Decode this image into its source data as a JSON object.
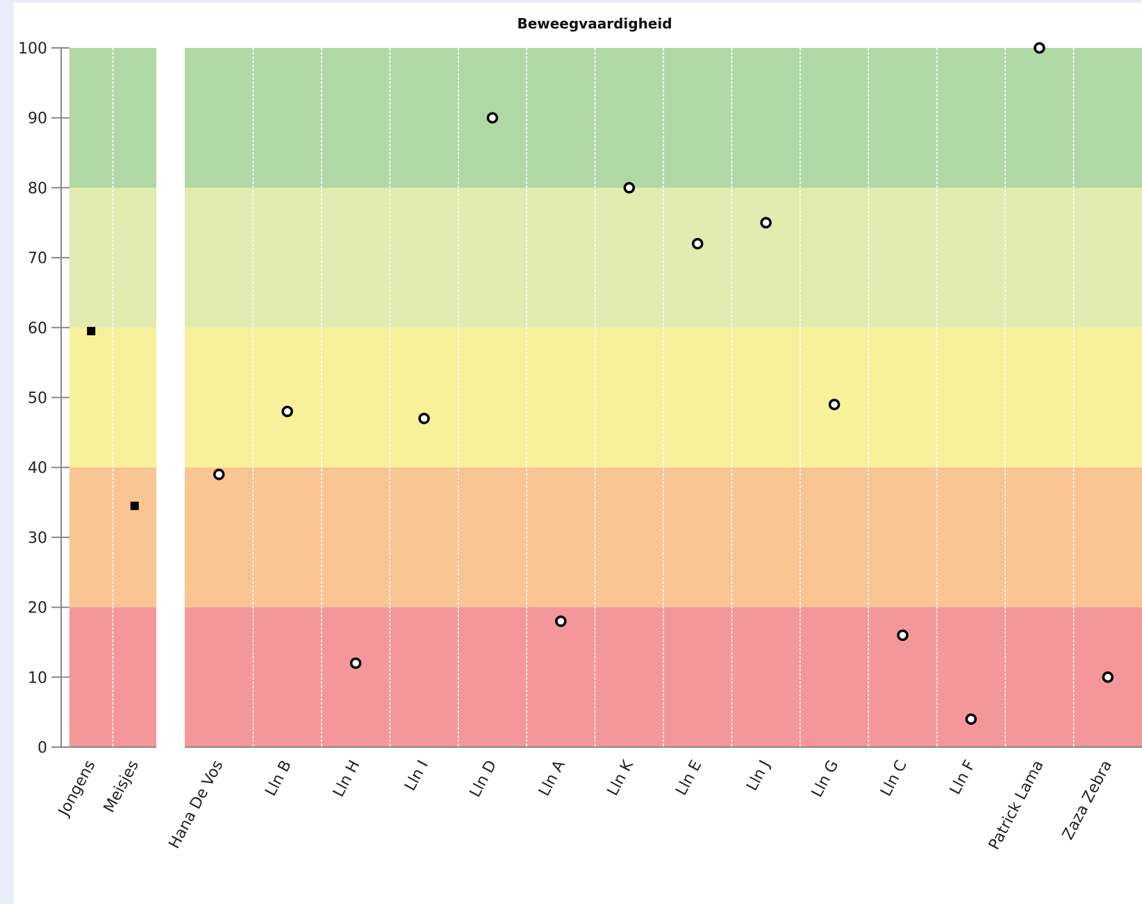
{
  "chart_data": {
    "type": "scatter",
    "title": "Beweegvaardigheid",
    "xlabel": "",
    "ylabel": "",
    "ylim": [
      0,
      100
    ],
    "yticks": [
      0,
      10,
      20,
      30,
      40,
      50,
      60,
      70,
      80,
      90,
      100
    ],
    "bands": [
      {
        "from": 0,
        "to": 20,
        "color": "#f4979a"
      },
      {
        "from": 20,
        "to": 40,
        "color": "#f9c593"
      },
      {
        "from": 40,
        "to": 60,
        "color": "#f8f19b"
      },
      {
        "from": 60,
        "to": 80,
        "color": "#e2ebb0"
      },
      {
        "from": 80,
        "to": 100,
        "color": "#b0d8a5"
      }
    ],
    "groups": {
      "categories": [
        "Jongens",
        "Meisjes"
      ],
      "values": [
        59.5,
        34.5
      ],
      "marker": "square"
    },
    "students": {
      "categories": [
        "Hana De Vos",
        "Lln B",
        "Lln H",
        "Lln I",
        "Lln D",
        "Lln A",
        "Lln K",
        "Lln E",
        "Lln J",
        "Lln G",
        "Lln C",
        "Lln F",
        "Patrick Lama",
        "Zaza Zebra"
      ],
      "values": [
        39,
        48,
        12,
        47,
        90,
        18,
        80,
        72,
        75,
        49,
        16,
        4,
        100,
        10
      ],
      "marker": "circle"
    }
  }
}
